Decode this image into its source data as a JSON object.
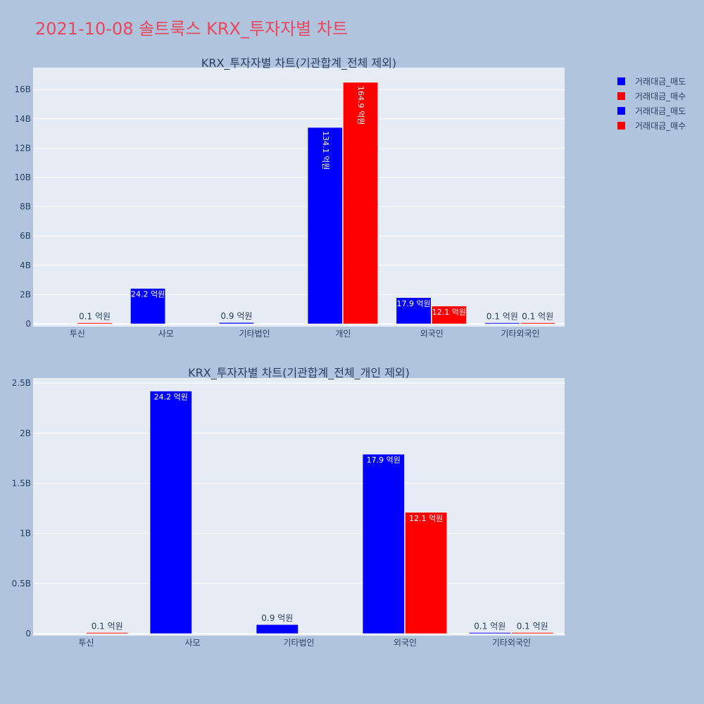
{
  "title": "2021-10-08 솔트룩스 KRX_투자자별 차트",
  "title_color": "#e8475d",
  "background_color": "#b0c4de",
  "plot_background": "#e5ecf6",
  "legend": [
    {
      "label": "거래대금_매도",
      "color": "#0000ff"
    },
    {
      "label": "거래대금_매수",
      "color": "#ff0000"
    },
    {
      "label": "거래대금_매도",
      "color": "#0000ff"
    },
    {
      "label": "거래대금_매수",
      "color": "#ff0000"
    }
  ],
  "chart_data": [
    {
      "type": "bar",
      "title": "KRX_투자자별 차트(기관합계_전체 제외)",
      "categories": [
        "투신",
        "사모",
        "기타법인",
        "개인",
        "외국인",
        "기타외국인"
      ],
      "ylim": [
        0,
        17500000000
      ],
      "yticks": [
        0,
        2000000000,
        4000000000,
        6000000000,
        8000000000,
        10000000000,
        12000000000,
        14000000000,
        16000000000
      ],
      "ytick_labels": [
        "0",
        "2B",
        "4B",
        "6B",
        "8B",
        "10B",
        "12B",
        "14B",
        "16B"
      ],
      "grid": true,
      "series": [
        {
          "name": "거래대금_매도",
          "color": "#0000ff",
          "values": [
            0,
            2420000000,
            90000000,
            13410000000,
            1790000000,
            10000000
          ],
          "labels": [
            "",
            "24.2 억원",
            "0.9 억원",
            "134.1 억원",
            "17.9 억원",
            "0.1 억원"
          ]
        },
        {
          "name": "거래대금_매수",
          "color": "#ff0000",
          "values": [
            10000000,
            0,
            0,
            16490000000,
            1210000000,
            10000000
          ],
          "labels": [
            "0.1 억원",
            "",
            "",
            "164.9 억원",
            "12.1 억원",
            "0.1 억원"
          ]
        }
      ]
    },
    {
      "type": "bar",
      "title": "KRX_투자자별 차트(기관합계_전체_개인 제외)",
      "categories": [
        "투신",
        "사모",
        "기타법인",
        "외국인",
        "기타외국인"
      ],
      "ylim": [
        0,
        2550000000
      ],
      "yticks": [
        0,
        500000000,
        1000000000,
        1500000000,
        2000000000,
        2500000000
      ],
      "ytick_labels": [
        "0",
        "0.5B",
        "1B",
        "1.5B",
        "2B",
        "2.5B"
      ],
      "grid": true,
      "series": [
        {
          "name": "거래대금_매도",
          "color": "#0000ff",
          "values": [
            0,
            2420000000,
            90000000,
            1790000000,
            10000000
          ],
          "labels": [
            "",
            "24.2 억원",
            "0.9 억원",
            "17.9 억원",
            "0.1 억원"
          ]
        },
        {
          "name": "거래대금_매수",
          "color": "#ff0000",
          "values": [
            10000000,
            0,
            0,
            1210000000,
            10000000
          ],
          "labels": [
            "0.1 억원",
            "",
            "",
            "12.1 억원",
            "0.1 억원"
          ]
        }
      ]
    }
  ]
}
